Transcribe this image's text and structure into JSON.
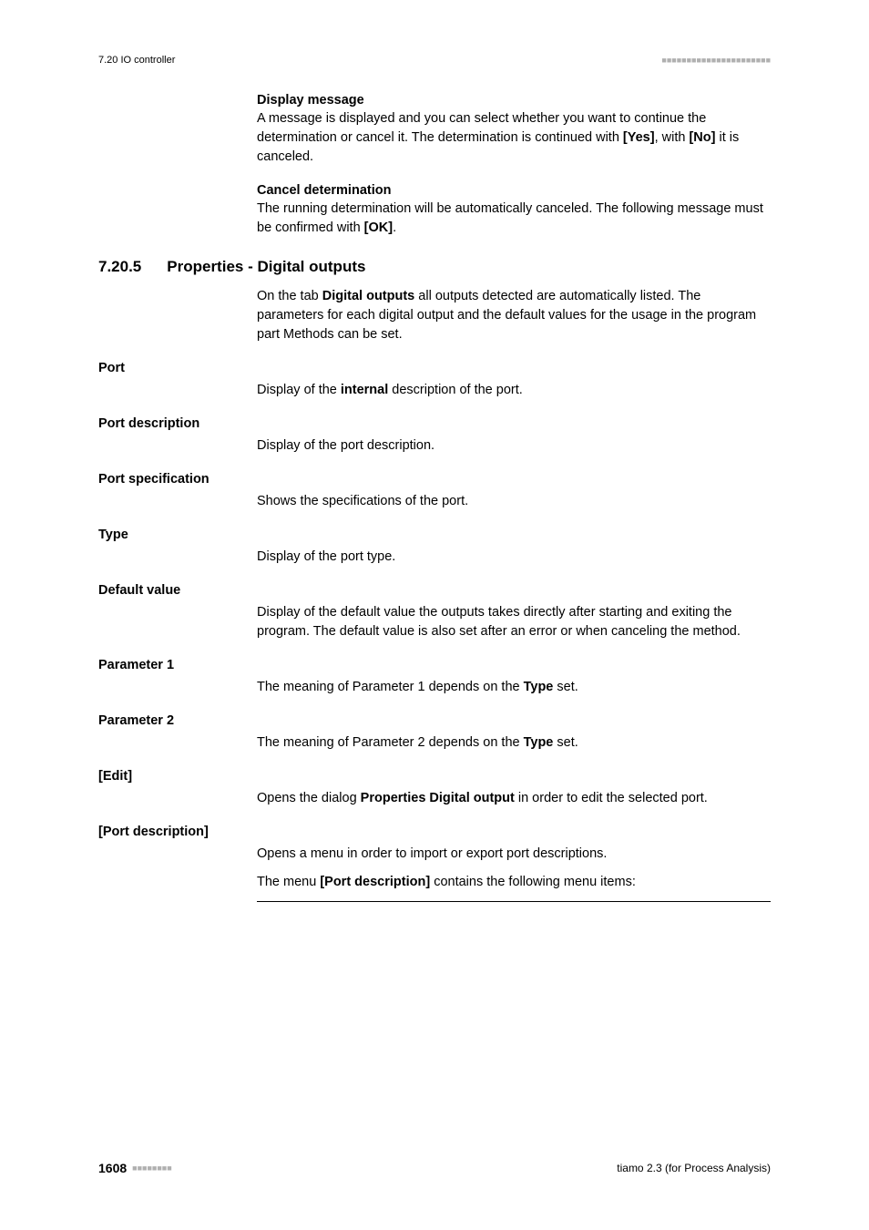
{
  "header": {
    "left": "7.20 IO controller",
    "dots": "■■■■■■■■■■■■■■■■■■■■■■"
  },
  "top_items": [
    {
      "lead": "Display message",
      "body_parts": [
        {
          "t": "A message is displayed and you can select whether you want to continue the determination or cancel it. The determination is continued with "
        },
        {
          "t": "[Yes]",
          "bold": true
        },
        {
          "t": ", with "
        },
        {
          "t": "[No]",
          "bold": true
        },
        {
          "t": " it is canceled."
        }
      ]
    },
    {
      "lead": "Cancel determination",
      "body_parts": [
        {
          "t": "The running determination will be automatically canceled. The following message must be confirmed with "
        },
        {
          "t": "[OK]",
          "bold": true
        },
        {
          "t": "."
        }
      ]
    }
  ],
  "section": {
    "number": "7.20.5",
    "title": "Properties - Digital outputs",
    "intro_parts": [
      {
        "t": "On the tab "
      },
      {
        "t": "Digital outputs",
        "bold": true
      },
      {
        "t": " all outputs detected are automatically listed. The parameters for each digital output and the default values for the usage in the program part Methods can be set."
      }
    ]
  },
  "defs": [
    {
      "term": "Port",
      "body_parts": [
        {
          "t": "Display of the "
        },
        {
          "t": "internal",
          "bold": true
        },
        {
          "t": " description of the port."
        }
      ]
    },
    {
      "term": "Port description",
      "body_parts": [
        {
          "t": "Display of the port description."
        }
      ]
    },
    {
      "term": "Port specification",
      "body_parts": [
        {
          "t": "Shows the specifications of the port."
        }
      ]
    },
    {
      "term": "Type",
      "body_parts": [
        {
          "t": "Display of the port type."
        }
      ]
    },
    {
      "term": "Default value",
      "body_parts": [
        {
          "t": "Display of the default value the outputs takes directly after starting and exiting the program. The default value is also set after an error or when canceling the method."
        }
      ]
    },
    {
      "term": "Parameter 1",
      "body_parts": [
        {
          "t": "The meaning of Parameter 1 depends on the "
        },
        {
          "t": "Type",
          "bold": true
        },
        {
          "t": " set."
        }
      ]
    },
    {
      "term": "Parameter 2",
      "body_parts": [
        {
          "t": "The meaning of Parameter 2 depends on the "
        },
        {
          "t": "Type",
          "bold": true
        },
        {
          "t": " set."
        }
      ]
    },
    {
      "term": "[Edit]",
      "body_parts": [
        {
          "t": "Opens the dialog "
        },
        {
          "t": "Properties Digital output",
          "bold": true
        },
        {
          "t": " in order to edit the selected port."
        }
      ]
    },
    {
      "term": "[Port description]",
      "body_parts": [
        {
          "t": "Opens a menu in order to import or export port descriptions."
        }
      ],
      "extra_parts": [
        {
          "t": "The menu "
        },
        {
          "t": "[Port description]",
          "bold": true
        },
        {
          "t": " contains the following menu items:"
        }
      ]
    }
  ],
  "footer": {
    "page": "1608",
    "dots": "■■■■■■■■",
    "right": "tiamo 2.3 (for Process Analysis)"
  }
}
